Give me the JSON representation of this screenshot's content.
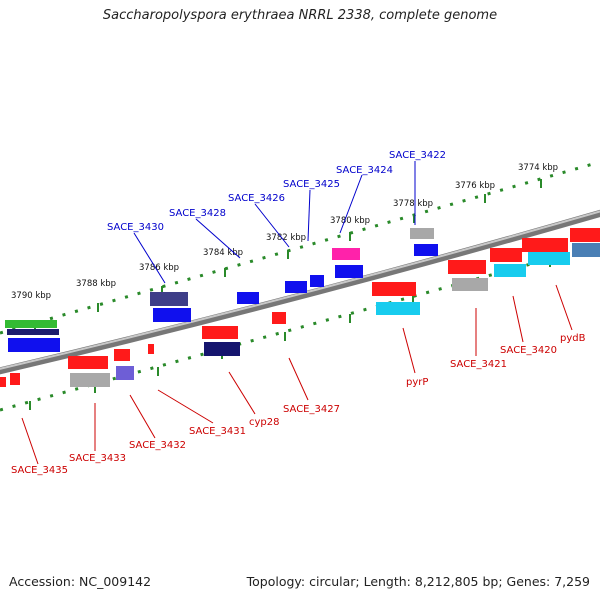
{
  "title": "Saccharopolyspora erythraea NRRL 2338, complete genome",
  "footer": {
    "accession": "Accession: NC_009142",
    "summary": "Topology: circular; Length: 8,212,805 bp; Genes: 7,259"
  },
  "colors": {
    "backbone": "#808080",
    "forward_label": "#0000cc",
    "reverse_label": "#cc0000",
    "ruler_dots": "#2a8a2a"
  },
  "ruler_labels": [
    "3774 kbp",
    "3776 kbp",
    "3778 kbp",
    "3780 kbp",
    "3782 kbp",
    "3784 kbp",
    "3786 kbp",
    "3788 kbp",
    "3790 kbp"
  ],
  "forward_genes": [
    "SACE_3422",
    "SACE_3424",
    "SACE_3425",
    "SACE_3426",
    "SACE_3428",
    "SACE_3430"
  ],
  "reverse_genes": [
    "pydB",
    "SACE_3420",
    "SACE_3421",
    "pyrP",
    "SACE_3427",
    "cyp28",
    "SACE_3431",
    "SACE_3432",
    "SACE_3433",
    "SACE_3435"
  ]
}
